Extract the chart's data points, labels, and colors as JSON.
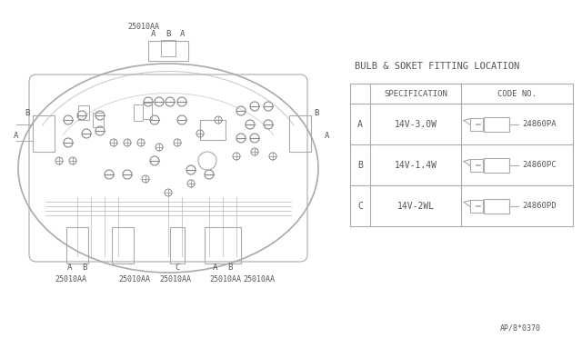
{
  "title": "BULB & SOKET FITTING LOCATION",
  "bg_color": "#ffffff",
  "line_color": "#aaaaaa",
  "text_color": "#555555",
  "table_rows": [
    {
      "label": "A",
      "spec": "14V-3.0W",
      "code": "24860PA"
    },
    {
      "label": "B",
      "spec": "14V-1.4W",
      "code": "24860PC"
    },
    {
      "label": "C",
      "spec": "14V-2WL",
      "code": "24860PD"
    }
  ],
  "footer": "AP/8*0370",
  "connector_labels_top": [
    "A",
    "B",
    "A"
  ],
  "connector_labels_bottom_left": [
    "A",
    "B"
  ],
  "connector_labels_bottom_mid": [
    "C",
    "A",
    "B"
  ],
  "part_labels": [
    "25010AA",
    "25010AA",
    "25010AA",
    "25010AA",
    "25010AA"
  ],
  "part_label_top": "25010AA",
  "ref_label_left_top": "B",
  "ref_label_left_mid": "A",
  "ref_label_right_top": "B",
  "ref_label_right_mid": "A"
}
